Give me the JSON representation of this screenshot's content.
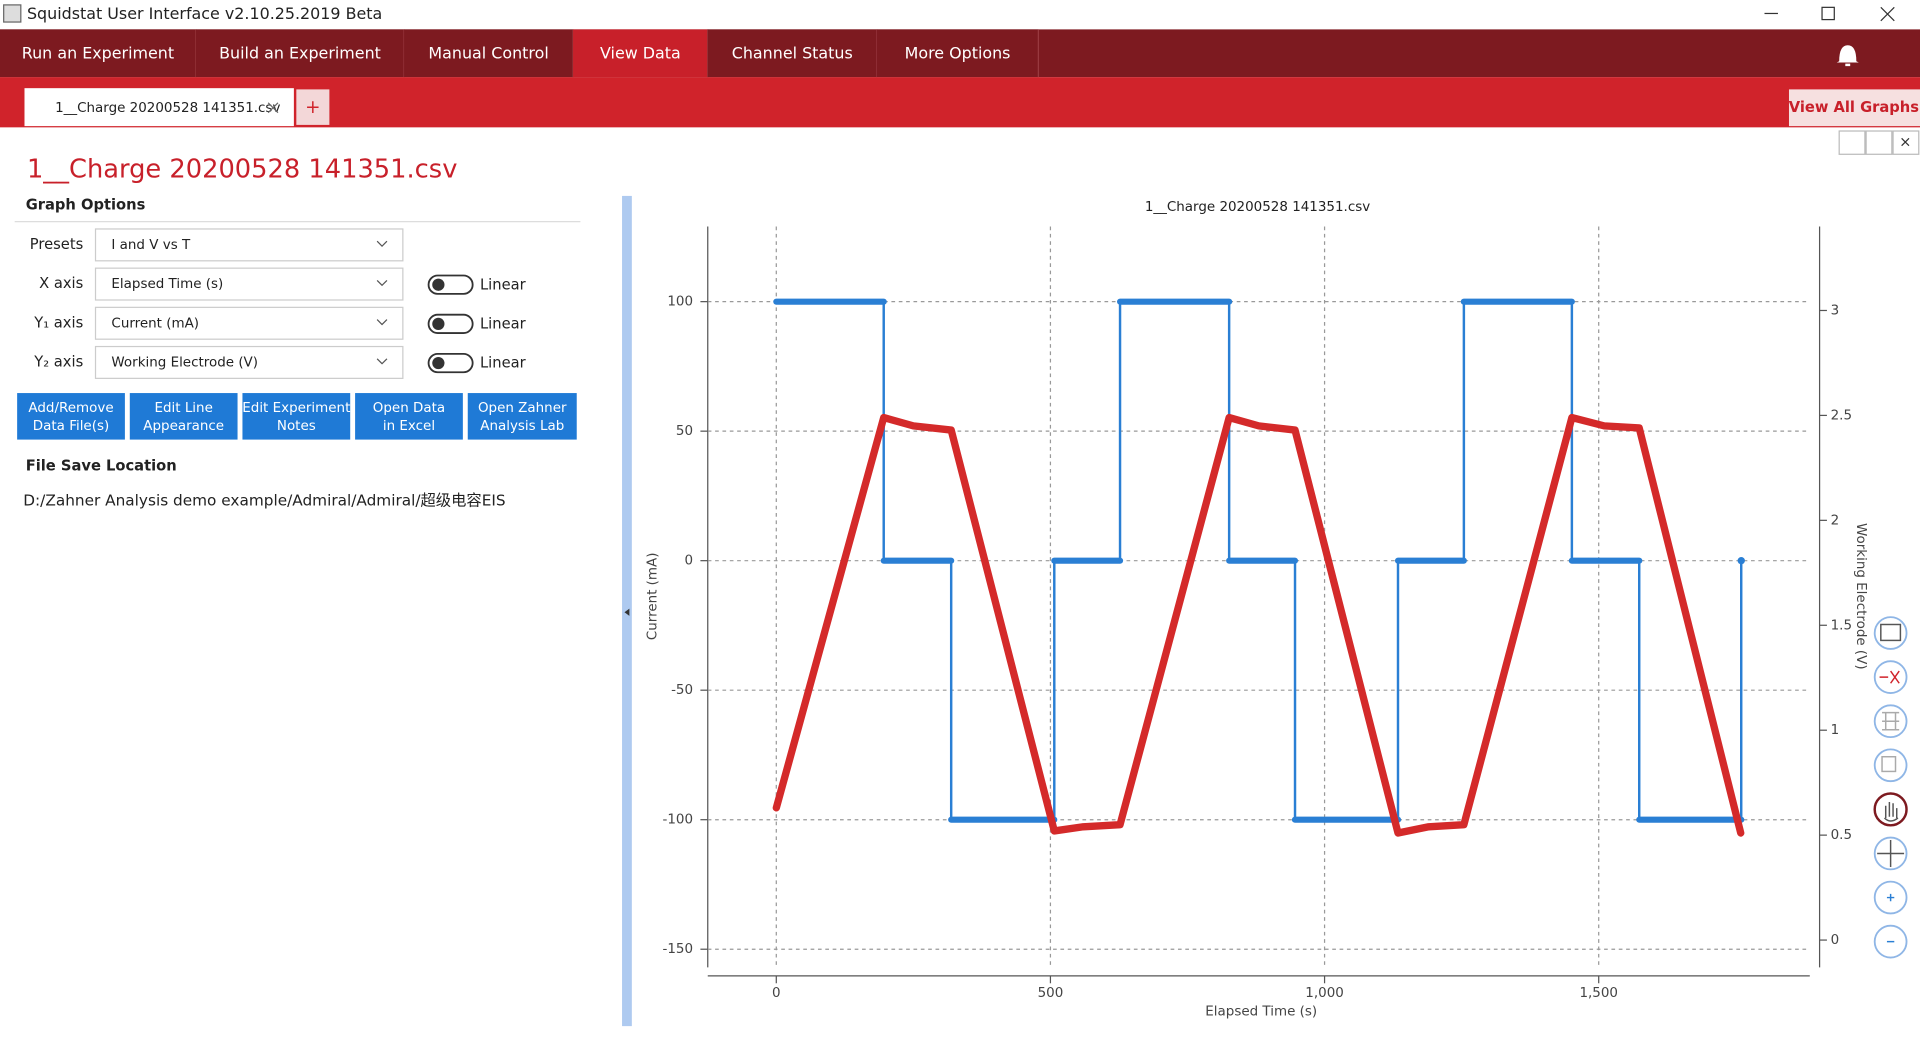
{
  "window": {
    "title": "Squidstat User Interface v2.10.25.2019 Beta"
  },
  "nav": {
    "tabs": [
      "Run an Experiment",
      "Build an Experiment",
      "Manual Control",
      "View Data",
      "Channel Status",
      "More Options"
    ],
    "active": 3
  },
  "file_tabs": {
    "tab": "1__Charge 20200528 141351.csv",
    "add": "+",
    "view_all": "View All Graphs"
  },
  "panel": {
    "heading": "1__Charge 20200528 141351.csv",
    "graph_options": "Graph Options",
    "rows": [
      {
        "label": "Presets",
        "value": "I and V vs T"
      },
      {
        "label": "X axis",
        "value": "Elapsed Time (s)",
        "scale": "Linear"
      },
      {
        "label": "Y₁ axis",
        "value": "Current (mA)",
        "scale": "Linear"
      },
      {
        "label": "Y₂ axis",
        "value": "Working Electrode (V)",
        "scale": "Linear"
      }
    ],
    "buttons": [
      [
        "Add/Remove",
        "Data File(s)"
      ],
      [
        "Edit Line",
        "Appearance"
      ],
      [
        "Edit Experiment",
        "Notes"
      ],
      [
        "Open Data",
        "in Excel"
      ],
      [
        "Open Zahner",
        "Analysis Lab"
      ]
    ],
    "save_label": "File Save Location",
    "save_path": "D:/Zahner Analysis demo example/Admiral/Admiral/超级电容EIS"
  },
  "chart_data": {
    "type": "line",
    "title": "1__Charge 20200528 141351.csv",
    "xlabel": "Elapsed Time (s)",
    "ylabel": "Current (mA)",
    "y2label": "Working Electrode (V)",
    "xlim": [
      -125,
      1885
    ],
    "ylim": [
      -157,
      129
    ],
    "y2lim": [
      -0.13,
      3.4
    ],
    "xticks": [
      0,
      500,
      {
        "value": 1000,
        "label": "1,000"
      },
      {
        "value": 1500,
        "label": "1,500"
      }
    ],
    "yticks": [
      -150,
      -100,
      -50,
      0,
      50,
      100
    ],
    "y2ticks": [
      0,
      0.5,
      1,
      1.5,
      2,
      2.5,
      3
    ],
    "grid": true,
    "series": [
      {
        "color": "#2a7fd4",
        "x": [
          0,
          196,
          196,
          319,
          319,
          507,
          507,
          627,
          627,
          826,
          826,
          946,
          946,
          1134,
          1134,
          1254,
          1254,
          1451,
          1451,
          1574,
          1574,
          1760,
          1760
        ],
        "values": [
          100,
          100,
          0,
          0,
          -100,
          -100,
          0,
          0,
          100,
          100,
          0,
          0,
          -100,
          -100,
          0,
          0,
          100,
          100,
          0,
          0,
          -100,
          -100,
          0
        ]
      },
      {
        "color": "#d42a2a",
        "axis": "y2",
        "x": [
          0,
          196,
          250,
          319,
          507,
          560,
          627,
          826,
          880,
          946,
          1134,
          1190,
          1254,
          1451,
          1510,
          1574,
          1759
        ],
        "values": [
          0.63,
          2.49,
          2.45,
          2.43,
          0.52,
          0.54,
          0.55,
          2.49,
          2.45,
          2.43,
          0.51,
          0.54,
          0.55,
          2.49,
          2.45,
          2.44,
          0.51
        ]
      }
    ]
  }
}
